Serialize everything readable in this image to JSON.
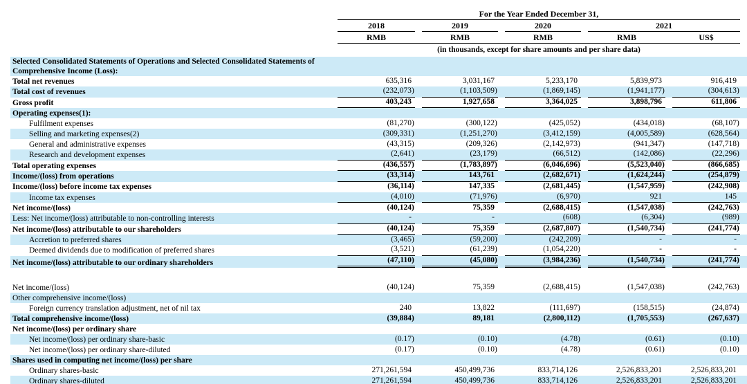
{
  "colors": {
    "row_stripe": "#cdeaf7",
    "text": "#000000",
    "rule": "#000000"
  },
  "header": {
    "span_title": "For the Year Ended December 31,",
    "year_groups": [
      {
        "label": "2018",
        "span": 1
      },
      {
        "label": "2019",
        "span": 1
      },
      {
        "label": "2020",
        "span": 1
      },
      {
        "label": "2021",
        "span": 2
      }
    ],
    "currencies": [
      "RMB",
      "RMB",
      "RMB",
      "RMB",
      "US$"
    ],
    "note": "(in thousands, except for share amounts and per share data)"
  },
  "table": {
    "rows": [
      {
        "label": "Selected Consolidated Statements of Operations and Selected Consolidated Statements of Comprehensive Income (Loss):",
        "bold": true,
        "indent": false,
        "shaded": true,
        "tall": true,
        "value_bold": false,
        "underline": "none",
        "values": [
          "",
          "",
          "",
          "",
          ""
        ]
      },
      {
        "label": "Total net revenues",
        "bold": true,
        "indent": false,
        "shaded": false,
        "value_bold": false,
        "underline": "none",
        "values": [
          "635,316",
          "3,031,167",
          "5,233,170",
          "5,839,973",
          "916,419"
        ]
      },
      {
        "label": "Total cost of revenues",
        "bold": true,
        "indent": false,
        "shaded": true,
        "value_bold": false,
        "underline": "single",
        "values": [
          "(232,073)",
          "(1,103,509)",
          "(1,869,145)",
          "(1,941,177)",
          "(304,613)"
        ]
      },
      {
        "label": "Gross profit",
        "bold": true,
        "indent": false,
        "shaded": false,
        "value_bold": true,
        "underline": "single",
        "values": [
          "403,243",
          "1,927,658",
          "3,364,025",
          "3,898,796",
          "611,806"
        ]
      },
      {
        "label": "Operating expenses(1):",
        "bold": true,
        "indent": false,
        "shaded": true,
        "value_bold": false,
        "underline": "none",
        "values": [
          "",
          "",
          "",
          "",
          ""
        ]
      },
      {
        "label": "Fulfilment expenses",
        "bold": false,
        "indent": true,
        "shaded": false,
        "value_bold": false,
        "underline": "none",
        "values": [
          "(81,270)",
          "(300,122)",
          "(425,052)",
          "(434,018)",
          "(68,107)"
        ]
      },
      {
        "label": "Selling and marketing expenses(2)",
        "bold": false,
        "indent": true,
        "shaded": true,
        "value_bold": false,
        "underline": "none",
        "values": [
          "(309,331)",
          "(1,251,270)",
          "(3,412,159)",
          "(4,005,589)",
          "(628,564)"
        ]
      },
      {
        "label": "General and administrative expenses",
        "bold": false,
        "indent": true,
        "shaded": false,
        "value_bold": false,
        "underline": "none",
        "values": [
          "(43,315)",
          "(209,326)",
          "(2,142,973)",
          "(941,347)",
          "(147,718)"
        ]
      },
      {
        "label": "Research and development expenses",
        "bold": false,
        "indent": true,
        "shaded": true,
        "value_bold": false,
        "underline": "single",
        "values": [
          "(2,641)",
          "(23,179)",
          "(66,512)",
          "(142,086)",
          "(22,296)"
        ]
      },
      {
        "label": "Total operating expenses",
        "bold": true,
        "indent": false,
        "shaded": false,
        "value_bold": true,
        "underline": "single",
        "values": [
          "(436,557)",
          "(1,783,897)",
          "(6,046,696)",
          "(5,523,040)",
          "(866,685)"
        ]
      },
      {
        "label": "Income/(loss) from operations",
        "bold": true,
        "indent": false,
        "shaded": true,
        "value_bold": true,
        "underline": "single",
        "values": [
          "(33,314)",
          "143,761",
          "(2,682,671)",
          "(1,624,244)",
          "(254,879)"
        ]
      },
      {
        "label": "Income/(loss) before income tax expenses",
        "bold": true,
        "indent": false,
        "shaded": false,
        "value_bold": true,
        "underline": "none",
        "values": [
          "(36,114)",
          "147,335",
          "(2,681,445)",
          "(1,547,959)",
          "(242,908)"
        ]
      },
      {
        "label": "Income tax expenses",
        "bold": false,
        "indent": true,
        "shaded": true,
        "value_bold": false,
        "underline": "single",
        "values": [
          "(4,010)",
          "(71,976)",
          "(6,970)",
          "921",
          "145"
        ]
      },
      {
        "label": "Net income/(loss)",
        "bold": true,
        "indent": false,
        "shaded": false,
        "value_bold": true,
        "underline": "none",
        "values": [
          "(40,124)",
          "75,359",
          "(2,688,415)",
          "(1,547,038)",
          "(242,763)"
        ]
      },
      {
        "label": "Less: Net income/(loss) attributable to non-controlling interests",
        "bold": false,
        "indent": false,
        "shaded": true,
        "value_bold": false,
        "underline": "single",
        "values": [
          "-",
          "-",
          "(608)",
          "(6,304)",
          "(989)"
        ]
      },
      {
        "label": "Net income/(loss) attributable to our shareholders",
        "bold": true,
        "indent": false,
        "shaded": false,
        "value_bold": true,
        "underline": "single",
        "values": [
          "(40,124)",
          "75,359",
          "(2,687,807)",
          "(1,540,734)",
          "(241,774)"
        ]
      },
      {
        "label": "Accretion to preferred shares",
        "bold": false,
        "indent": true,
        "shaded": true,
        "value_bold": false,
        "underline": "none",
        "values": [
          "(3,465)",
          "(59,200)",
          "(242,209)",
          "-",
          "-"
        ]
      },
      {
        "label": "Deemed dividends due to modification of preferred shares",
        "bold": false,
        "indent": true,
        "shaded": false,
        "value_bold": false,
        "underline": "single",
        "values": [
          "(3,521)",
          "(61,239)",
          "(1,054,220)",
          "-",
          "-"
        ]
      },
      {
        "label": "Net income/(loss) attributable to our ordinary shareholders",
        "bold": true,
        "indent": false,
        "shaded": true,
        "value_bold": true,
        "underline": "double",
        "space_after": true,
        "values": [
          "(47,110)",
          "(45,080)",
          "(3,984,236)",
          "(1,540,734)",
          "(241,774)"
        ]
      },
      {
        "label": "Net income/(loss)",
        "bold": false,
        "indent": false,
        "shaded": false,
        "value_bold": false,
        "underline": "none",
        "values": [
          "(40,124)",
          "75,359",
          "(2,688,415)",
          "(1,547,038)",
          "(242,763)"
        ]
      },
      {
        "label": "Other comprehensive income/(loss)",
        "bold": false,
        "indent": false,
        "shaded": true,
        "value_bold": false,
        "underline": "none",
        "values": [
          "",
          "",
          "",
          "",
          ""
        ]
      },
      {
        "label": "Foreign currency translation adjustment, net of nil tax",
        "bold": false,
        "indent": true,
        "shaded": false,
        "value_bold": false,
        "underline": "none",
        "values": [
          "240",
          "13,822",
          "(111,697)",
          "(158,515)",
          "(24,874)"
        ]
      },
      {
        "label": "Total comprehensive income/(loss)",
        "bold": true,
        "indent": false,
        "shaded": true,
        "value_bold": true,
        "underline": "none",
        "values": [
          "(39,884)",
          "89,181",
          "(2,800,112)",
          "(1,705,553)",
          "(267,637)"
        ]
      },
      {
        "label": "Net income/(loss) per ordinary share",
        "bold": true,
        "indent": false,
        "shaded": false,
        "value_bold": false,
        "underline": "none",
        "values": [
          "",
          "",
          "",
          "",
          ""
        ]
      },
      {
        "label": "Net income/(loss) per ordinary share-basic",
        "bold": false,
        "indent": true,
        "shaded": true,
        "value_bold": false,
        "underline": "none",
        "values": [
          "(0.17)",
          "(0.10)",
          "(4.78)",
          "(0.61)",
          "(0.10)"
        ]
      },
      {
        "label": "Net income/(loss) per ordinary share-diluted",
        "bold": false,
        "indent": true,
        "shaded": false,
        "value_bold": false,
        "underline": "none",
        "values": [
          "(0.17)",
          "(0.10)",
          "(4.78)",
          "(0.61)",
          "(0.10)"
        ]
      },
      {
        "label": "Shares used in computing net income/(loss) per share",
        "bold": true,
        "indent": false,
        "shaded": true,
        "value_bold": false,
        "underline": "none",
        "values": [
          "",
          "",
          "",
          "",
          ""
        ]
      },
      {
        "label": "Ordinary shares-basic",
        "bold": false,
        "indent": true,
        "shaded": false,
        "value_bold": false,
        "underline": "none",
        "values": [
          "271,261,594",
          "450,499,736",
          "833,714,126",
          "2,526,833,201",
          "2,526,833,201"
        ]
      },
      {
        "label": "Ordinary shares-diluted",
        "bold": false,
        "indent": true,
        "shaded": true,
        "value_bold": false,
        "underline": "none",
        "values": [
          "271,261,594",
          "450,499,736",
          "833,714,126",
          "2,526,833,201",
          "2,526,833,201"
        ]
      }
    ]
  }
}
